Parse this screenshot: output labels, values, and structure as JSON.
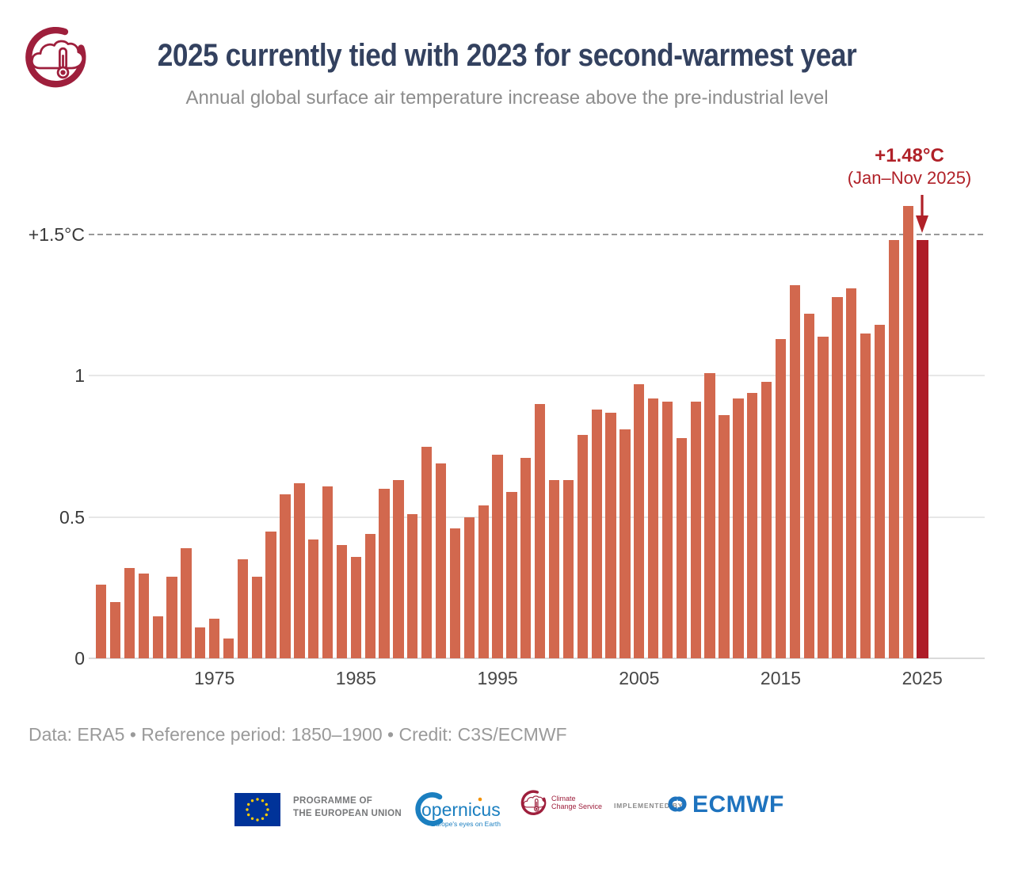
{
  "header": {
    "title": "2025 currently tied with 2023 for second-warmest year",
    "subtitle": "Annual global surface air temperature increase above the pre-industrial level"
  },
  "annotation": {
    "value": "+1.48°C",
    "period": "(Jan–Nov 2025)"
  },
  "chart_data": {
    "type": "bar",
    "title": "2025 currently tied with 2023 for second-warmest year",
    "subtitle": "Annual global surface air temperature increase above the pre-industrial level",
    "value_unit": "°C",
    "years": [
      1967,
      1968,
      1969,
      1970,
      1971,
      1972,
      1973,
      1974,
      1975,
      1976,
      1977,
      1978,
      1979,
      1980,
      1981,
      1982,
      1983,
      1984,
      1985,
      1986,
      1987,
      1988,
      1989,
      1990,
      1991,
      1992,
      1993,
      1994,
      1995,
      1996,
      1997,
      1998,
      1999,
      2000,
      2001,
      2002,
      2003,
      2004,
      2005,
      2006,
      2007,
      2008,
      2009,
      2010,
      2011,
      2012,
      2013,
      2014,
      2015,
      2016,
      2017,
      2018,
      2019,
      2020,
      2021,
      2022,
      2023,
      2024,
      2025
    ],
    "values": [
      0.26,
      0.2,
      0.32,
      0.3,
      0.15,
      0.29,
      0.39,
      0.11,
      0.14,
      0.07,
      0.35,
      0.29,
      0.45,
      0.58,
      0.62,
      0.42,
      0.61,
      0.4,
      0.36,
      0.44,
      0.6,
      0.63,
      0.51,
      0.75,
      0.69,
      0.46,
      0.5,
      0.54,
      0.72,
      0.59,
      0.71,
      0.9,
      0.63,
      0.63,
      0.79,
      0.88,
      0.87,
      0.81,
      0.97,
      0.92,
      0.91,
      0.78,
      0.91,
      1.01,
      0.86,
      0.92,
      0.94,
      0.98,
      1.13,
      1.32,
      1.22,
      1.14,
      1.28,
      1.31,
      1.15,
      1.18,
      1.48,
      1.6,
      1.48
    ],
    "highlight_year": 2025,
    "highlight_value": 1.48,
    "highlight_note": "+1.48°C (Jan–Nov 2025)",
    "reference_line": {
      "value": 1.5,
      "label": "+1.5°C"
    },
    "yticks": [
      {
        "value": 0,
        "label": "0"
      },
      {
        "value": 0.5,
        "label": "0.5"
      },
      {
        "value": 1,
        "label": "1"
      },
      {
        "value": 1.5,
        "label": "+1.5°C",
        "dashed": true
      }
    ],
    "xticks": [
      1975,
      1985,
      1995,
      2005,
      2015,
      2025
    ],
    "ylim": [
      0,
      1.65
    ],
    "grid": "horizontal",
    "legend": "none"
  },
  "footer": {
    "credit": "Data: ERA5 • Reference period: 1850–1900 • Credit: C3S/ECMWF"
  },
  "logos": {
    "eu_programme": {
      "line1": "PROGRAMME OF",
      "line2": "THE EUROPEAN UNION"
    },
    "copernicus": {
      "wordmark": "opernicus",
      "tagline": "Europe's eyes on Earth"
    },
    "climate_service": {
      "line1": "Climate",
      "line2": "Change Service"
    },
    "implemented_by": "IMPLEMENTED BY",
    "ecmwf": "ECMWF"
  },
  "colors": {
    "bar": "#d2684e",
    "bar_hl": "#ae1c28",
    "accent": "#b02128",
    "title": "#33415f",
    "subtitle": "#8d8d8d",
    "footer": "#9a9a9a",
    "axis": "#3a3a3a",
    "grid": "#e7e7e7",
    "dash": "#999999",
    "baseline": "#dadada",
    "logo_crimson": "#9e1f3c",
    "eu_blue": "#003399",
    "eu_star": "#ffcc00",
    "copernicus_blue": "#1b7fc0",
    "copernicus_orange": "#f39200",
    "ecmwf_blue": "#1e73be"
  }
}
